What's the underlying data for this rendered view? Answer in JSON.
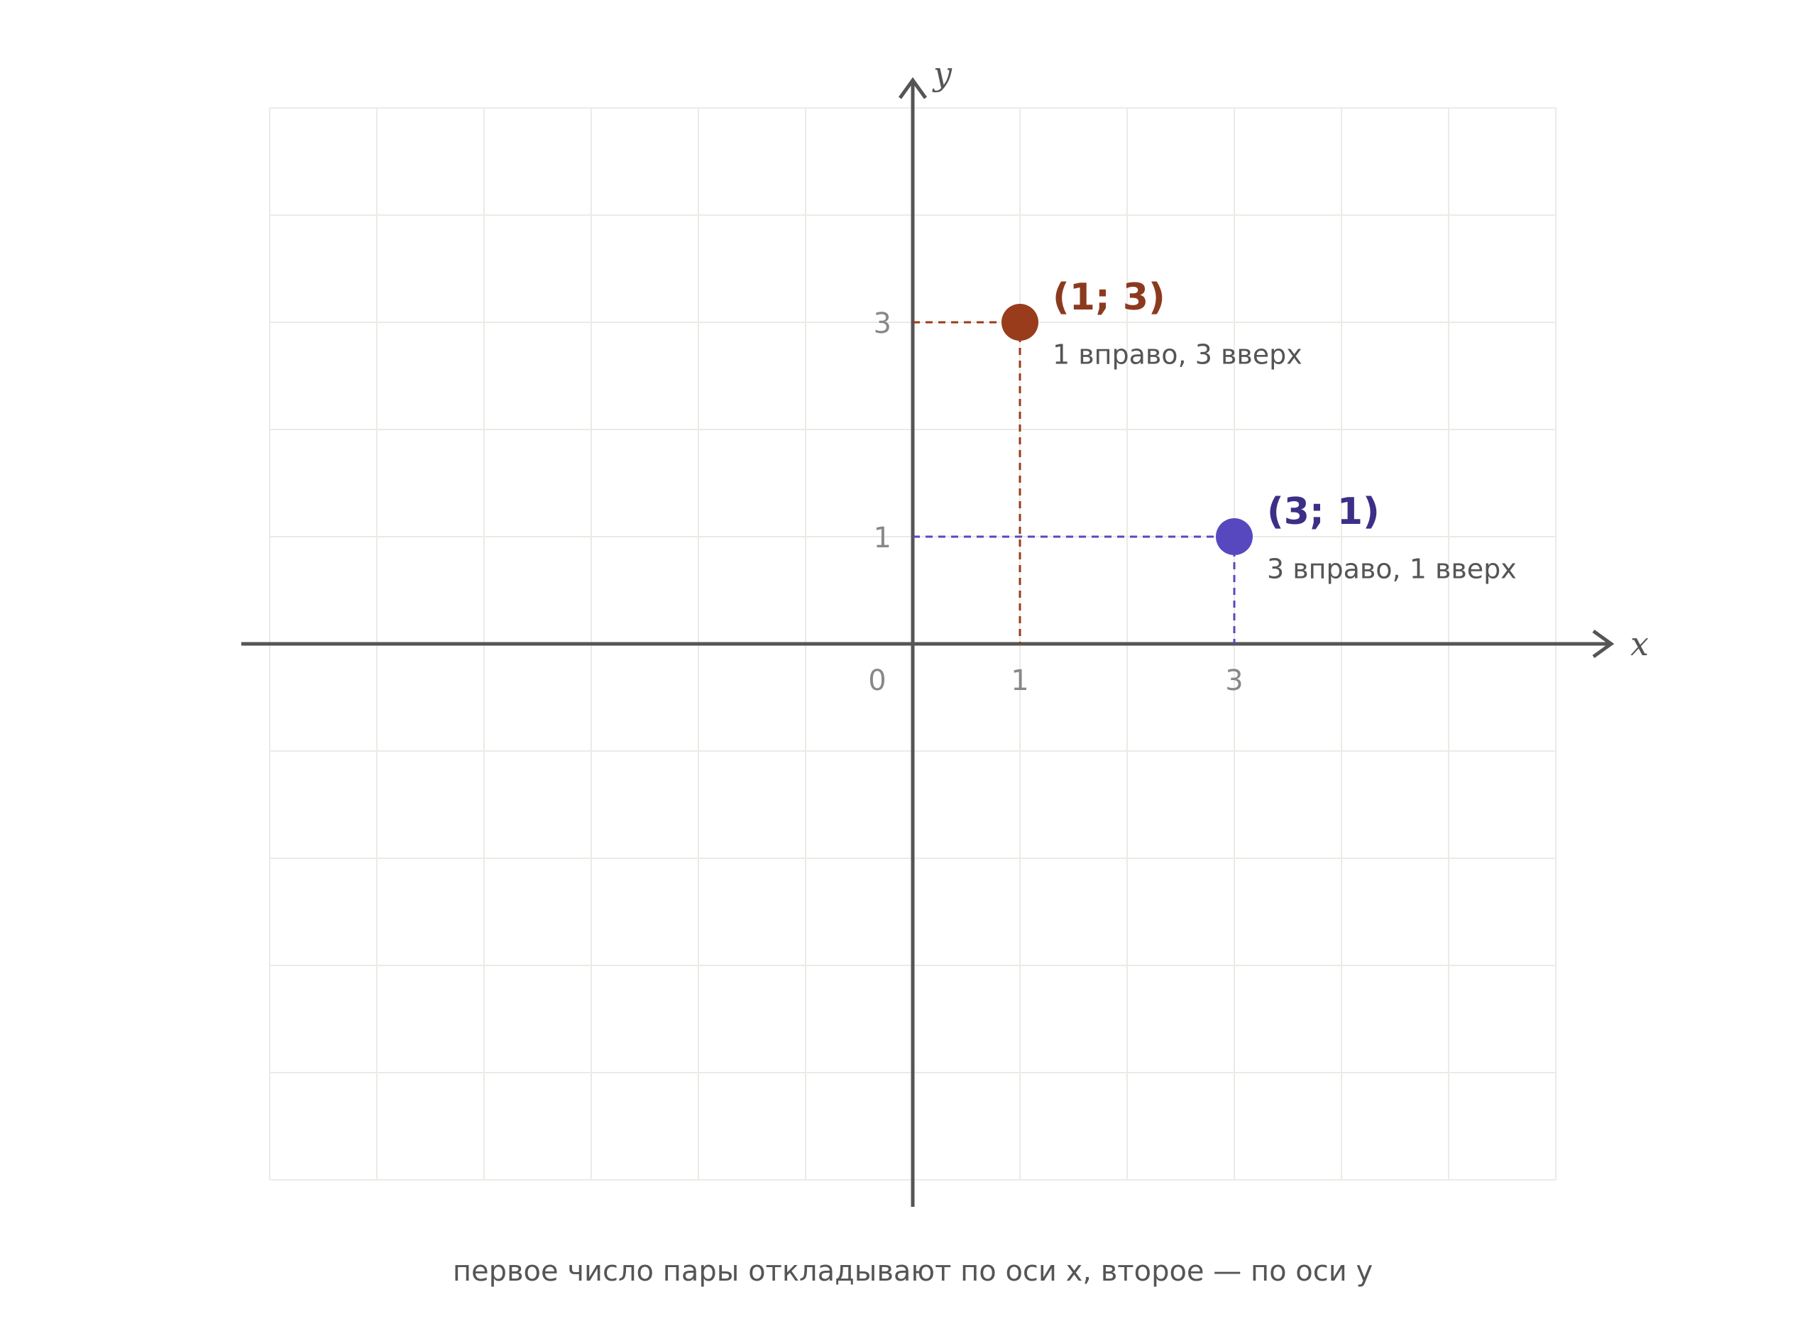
{
  "chart_data": {
    "type": "scatter",
    "x_label": "x",
    "y_label": "y",
    "xlim": [
      -6,
      6
    ],
    "ylim": [
      -5,
      5
    ],
    "xticks": [
      0,
      1,
      3
    ],
    "yticks": [
      1,
      3
    ],
    "xgrid": [
      -6,
      -5,
      -4,
      -3,
      -2,
      -1,
      0,
      1,
      2,
      3,
      4,
      5,
      6
    ],
    "ygrid": [
      -5,
      -4,
      -3,
      -2,
      -1,
      0,
      1,
      2,
      3,
      4,
      5
    ],
    "series": [
      {
        "name": "(1; 3)",
        "color": "#983c1c",
        "label_color": "#8b3a1e",
        "x": [
          1
        ],
        "values": [
          3
        ],
        "note": "1 вправо, 3 вверх"
      },
      {
        "name": "(3; 1)",
        "color": "#5748c0",
        "label_color": "#3b2f86",
        "x": [
          3
        ],
        "values": [
          1
        ],
        "note": "3 вправо, 1 вверх"
      }
    ],
    "caption": "первое число пары откладывают по оси x, второе — по оси y"
  }
}
